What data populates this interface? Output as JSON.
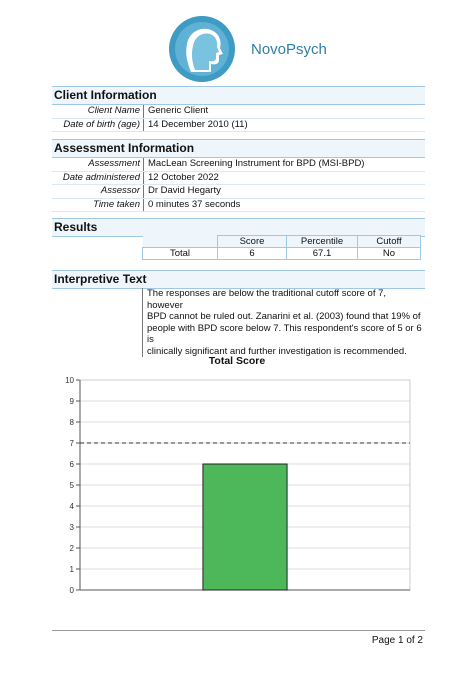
{
  "brand": {
    "name": "NovoPsych",
    "logo_icon": "head-silhouette-logo-icon",
    "color": "#2f7ea6"
  },
  "client": {
    "heading": "Client Information",
    "rows": [
      {
        "key": "Client Name",
        "value": "Generic Client"
      },
      {
        "key": "Date of birth (age)",
        "value": "14 December 2010 (11)"
      }
    ]
  },
  "assessment": {
    "heading": "Assessment Information",
    "rows": [
      {
        "key": "Assessment",
        "value": "MacLean Screening Instrument for BPD (MSI-BPD)"
      },
      {
        "key": "Date administered",
        "value": "12 October 2022"
      },
      {
        "key": "Assessor",
        "value": "Dr David Hegarty"
      },
      {
        "key": "Time taken",
        "value": "0 minutes 37 seconds"
      }
    ]
  },
  "results": {
    "heading": "Results",
    "columns": [
      "Score",
      "Percentile",
      "Cutoff"
    ],
    "row": {
      "label": "Total",
      "values": [
        "6",
        "67.1",
        "No"
      ]
    }
  },
  "interpretive": {
    "heading": "Interpretive Text",
    "lines": [
      "The responses are below the traditional cutoff score of 7, however",
      "BPD cannot be ruled out. Zanarini et al. (2003) found that 19% of",
      "people with BPD score below 7. This respondent's score of 5 or 6 is",
      "clinically significant and further investigation is recommended."
    ]
  },
  "chart_data": {
    "type": "bar",
    "title": "Total Score",
    "categories": [
      ""
    ],
    "values": [
      6
    ],
    "ylim": [
      0,
      10
    ],
    "yticks": [
      "0",
      "1",
      "2",
      "3",
      "4",
      "5",
      "6",
      "7",
      "8",
      "9",
      "10"
    ],
    "cutoff_line": 7,
    "grid": true,
    "bar_color": "#4cb85a",
    "xlabel": "",
    "ylabel": ""
  },
  "footer": {
    "page": "Page 1 of 2"
  }
}
